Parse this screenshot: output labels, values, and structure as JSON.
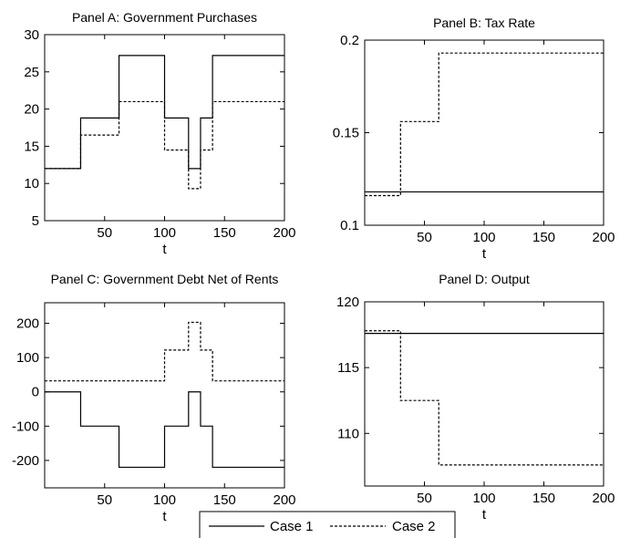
{
  "legend": {
    "entries": [
      {
        "label": "Case 1",
        "style": "solid"
      },
      {
        "label": "Case 2",
        "style": "dashed"
      }
    ]
  },
  "chart_data": [
    {
      "type": "line",
      "title": "Panel A: Government Purchases",
      "xlabel": "t",
      "ylabel": "",
      "xlim": [
        0,
        200
      ],
      "ylim": [
        5,
        30
      ],
      "xticks": [
        50,
        100,
        150,
        200
      ],
      "yticks": [
        5,
        10,
        15,
        20,
        25,
        30
      ],
      "series": [
        {
          "name": "Case 1",
          "style": "solid",
          "points": [
            [
              0,
              12
            ],
            [
              30,
              12
            ],
            [
              30,
              18.8
            ],
            [
              62,
              18.8
            ],
            [
              62,
              27.2
            ],
            [
              100,
              27.2
            ],
            [
              100,
              18.8
            ],
            [
              120,
              18.8
            ],
            [
              120,
              12
            ],
            [
              130,
              12
            ],
            [
              130,
              18.8
            ],
            [
              140,
              18.8
            ],
            [
              140,
              27.2
            ],
            [
              200,
              27.2
            ]
          ]
        },
        {
          "name": "Case 2",
          "style": "dashed",
          "points": [
            [
              0,
              12
            ],
            [
              30,
              12
            ],
            [
              30,
              16.5
            ],
            [
              62,
              16.5
            ],
            [
              62,
              21
            ],
            [
              100,
              21
            ],
            [
              100,
              14.5
            ],
            [
              120,
              14.5
            ],
            [
              120,
              9.3
            ],
            [
              130,
              9.3
            ],
            [
              130,
              14.5
            ],
            [
              140,
              14.5
            ],
            [
              140,
              21
            ],
            [
              200,
              21
            ]
          ]
        }
      ]
    },
    {
      "type": "line",
      "title": "Panel B: Tax Rate",
      "xlabel": "t",
      "ylabel": "",
      "xlim": [
        0,
        200
      ],
      "ylim": [
        0.1,
        0.2
      ],
      "xticks": [
        50,
        100,
        150,
        200
      ],
      "yticks": [
        0.1,
        0.15,
        0.2
      ],
      "ytick_labels": [
        "0.1",
        "0.15",
        "0.2"
      ],
      "series": [
        {
          "name": "Case 1",
          "style": "solid",
          "points": [
            [
              0,
              0.118
            ],
            [
              200,
              0.118
            ]
          ]
        },
        {
          "name": "Case 2",
          "style": "dashed",
          "points": [
            [
              0,
              0.116
            ],
            [
              30,
              0.116
            ],
            [
              30,
              0.156
            ],
            [
              62,
              0.156
            ],
            [
              62,
              0.193
            ],
            [
              200,
              0.193
            ]
          ]
        }
      ]
    },
    {
      "type": "line",
      "title": "Panel C: Government Debt Net of Rents",
      "xlabel": "t",
      "ylabel": "",
      "xlim": [
        0,
        200
      ],
      "ylim": [
        -280,
        260
      ],
      "xticks": [
        50,
        100,
        150,
        200
      ],
      "yticks": [
        -200,
        -100,
        0,
        100,
        200
      ],
      "series": [
        {
          "name": "Case 1",
          "style": "solid",
          "points": [
            [
              0,
              0
            ],
            [
              30,
              0
            ],
            [
              30,
              -100
            ],
            [
              62,
              -100
            ],
            [
              62,
              -220
            ],
            [
              100,
              -220
            ],
            [
              100,
              -100
            ],
            [
              120,
              -100
            ],
            [
              120,
              0
            ],
            [
              130,
              0
            ],
            [
              130,
              -100
            ],
            [
              140,
              -100
            ],
            [
              140,
              -220
            ],
            [
              200,
              -220
            ]
          ]
        },
        {
          "name": "Case 2",
          "style": "dashed",
          "points": [
            [
              0,
              32
            ],
            [
              100,
              32
            ],
            [
              100,
              122
            ],
            [
              120,
              122
            ],
            [
              120,
              203
            ],
            [
              130,
              203
            ],
            [
              130,
              122
            ],
            [
              140,
              122
            ],
            [
              140,
              32
            ],
            [
              200,
              32
            ]
          ]
        }
      ]
    },
    {
      "type": "line",
      "title": "Panel D: Output",
      "xlabel": "t",
      "ylabel": "",
      "xlim": [
        0,
        200
      ],
      "ylim": [
        106,
        120
      ],
      "xticks": [
        50,
        100,
        150,
        200
      ],
      "yticks": [
        110,
        115,
        120
      ],
      "series": [
        {
          "name": "Case 1",
          "style": "solid",
          "points": [
            [
              0,
              117.6
            ],
            [
              200,
              117.6
            ]
          ]
        },
        {
          "name": "Case 2",
          "style": "dashed",
          "points": [
            [
              0,
              117.8
            ],
            [
              30,
              117.8
            ],
            [
              30,
              112.5
            ],
            [
              62,
              112.5
            ],
            [
              62,
              107.6
            ],
            [
              200,
              107.6
            ]
          ]
        }
      ]
    }
  ]
}
